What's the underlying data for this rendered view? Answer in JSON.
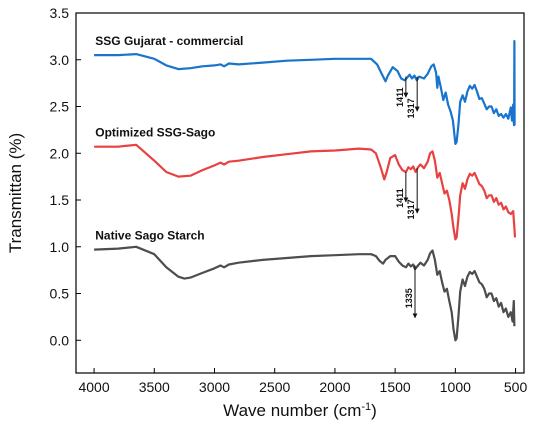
{
  "chart_data": {
    "type": "line",
    "title": "",
    "xlabel_main": "Wave number (cm",
    "xlabel_sup": "-1",
    "xlabel_close": ")",
    "xlabel": "Wave number (cm-1)",
    "ylabel": "Transmittan (%)",
    "xlim": [
      4150,
      430
    ],
    "ylim": [
      -0.35,
      3.5
    ],
    "x_reversed": true,
    "grid": false,
    "x_ticks": [
      4000,
      3500,
      3000,
      2500,
      2000,
      1500,
      1000,
      500
    ],
    "y_ticks": [
      0.0,
      0.5,
      1.0,
      1.5,
      2.0,
      2.5,
      3.0,
      3.5
    ],
    "y_tick_labels": [
      "0.0",
      "0.5",
      "1.0",
      "1.5",
      "2.0",
      "2.5",
      "3.0",
      "3.5"
    ],
    "colors": {
      "series_1": "#1874cd",
      "series_2": "#e8413f",
      "series_3": "#4d4d4d"
    },
    "series": [
      {
        "name": "SSG Gujarat - commercial",
        "color": "#1874cd",
        "points": [
          [
            4000,
            3.05
          ],
          [
            3800,
            3.05
          ],
          [
            3650,
            3.06
          ],
          [
            3500,
            3.01
          ],
          [
            3400,
            2.94
          ],
          [
            3300,
            2.9
          ],
          [
            3200,
            2.91
          ],
          [
            3100,
            2.93
          ],
          [
            3000,
            2.94
          ],
          [
            2950,
            2.95
          ],
          [
            2920,
            2.93
          ],
          [
            2880,
            2.96
          ],
          [
            2800,
            2.95
          ],
          [
            2600,
            2.97
          ],
          [
            2400,
            2.99
          ],
          [
            2200,
            3.0
          ],
          [
            2000,
            3.01
          ],
          [
            1800,
            3.01
          ],
          [
            1700,
            3.01
          ],
          [
            1650,
            2.95
          ],
          [
            1600,
            2.82
          ],
          [
            1580,
            2.77
          ],
          [
            1560,
            2.83
          ],
          [
            1520,
            2.92
          ],
          [
            1480,
            2.88
          ],
          [
            1450,
            2.8
          ],
          [
            1420,
            2.78
          ],
          [
            1400,
            2.81
          ],
          [
            1380,
            2.84
          ],
          [
            1360,
            2.8
          ],
          [
            1340,
            2.83
          ],
          [
            1320,
            2.78
          ],
          [
            1300,
            2.82
          ],
          [
            1260,
            2.8
          ],
          [
            1230,
            2.85
          ],
          [
            1200,
            2.93
          ],
          [
            1180,
            2.95
          ],
          [
            1160,
            2.86
          ],
          [
            1150,
            2.7
          ],
          [
            1140,
            2.82
          ],
          [
            1120,
            2.7
          ],
          [
            1100,
            2.57
          ],
          [
            1080,
            2.65
          ],
          [
            1060,
            2.52
          ],
          [
            1040,
            2.45
          ],
          [
            1020,
            2.35
          ],
          [
            1000,
            2.1
          ],
          [
            990,
            2.12
          ],
          [
            975,
            2.3
          ],
          [
            960,
            2.55
          ],
          [
            940,
            2.62
          ],
          [
            920,
            2.55
          ],
          [
            900,
            2.66
          ],
          [
            880,
            2.72
          ],
          [
            860,
            2.69
          ],
          [
            840,
            2.73
          ],
          [
            820,
            2.66
          ],
          [
            800,
            2.58
          ],
          [
            780,
            2.59
          ],
          [
            760,
            2.53
          ],
          [
            740,
            2.47
          ],
          [
            720,
            2.5
          ],
          [
            700,
            2.5
          ],
          [
            680,
            2.43
          ],
          [
            660,
            2.47
          ],
          [
            640,
            2.4
          ],
          [
            620,
            2.42
          ],
          [
            600,
            2.38
          ],
          [
            580,
            2.42
          ],
          [
            560,
            2.37
          ],
          [
            540,
            2.49
          ],
          [
            530,
            2.35
          ],
          [
            520,
            2.52
          ],
          [
            515,
            2.33
          ],
          [
            512,
            2.3
          ],
          [
            510,
            3.2
          ],
          [
            508,
            2.3
          ]
        ]
      },
      {
        "name": "Optimized SSG-Sago",
        "color": "#e8413f",
        "points": [
          [
            4000,
            2.07
          ],
          [
            3800,
            2.07
          ],
          [
            3650,
            2.09
          ],
          [
            3500,
            1.92
          ],
          [
            3400,
            1.8
          ],
          [
            3300,
            1.75
          ],
          [
            3200,
            1.76
          ],
          [
            3100,
            1.82
          ],
          [
            3000,
            1.87
          ],
          [
            2950,
            1.9
          ],
          [
            2920,
            1.88
          ],
          [
            2880,
            1.91
          ],
          [
            2800,
            1.92
          ],
          [
            2600,
            1.96
          ],
          [
            2400,
            1.99
          ],
          [
            2200,
            2.02
          ],
          [
            2000,
            2.03
          ],
          [
            1800,
            2.05
          ],
          [
            1700,
            2.04
          ],
          [
            1660,
            2.0
          ],
          [
            1620,
            1.85
          ],
          [
            1590,
            1.72
          ],
          [
            1570,
            1.8
          ],
          [
            1540,
            1.95
          ],
          [
            1500,
            1.98
          ],
          [
            1470,
            1.88
          ],
          [
            1440,
            1.82
          ],
          [
            1410,
            1.8
          ],
          [
            1390,
            1.85
          ],
          [
            1370,
            1.83
          ],
          [
            1350,
            1.86
          ],
          [
            1330,
            1.8
          ],
          [
            1310,
            1.85
          ],
          [
            1290,
            1.88
          ],
          [
            1260,
            1.84
          ],
          [
            1230,
            1.91
          ],
          [
            1210,
            2.0
          ],
          [
            1190,
            2.02
          ],
          [
            1170,
            1.92
          ],
          [
            1150,
            1.74
          ],
          [
            1130,
            1.79
          ],
          [
            1110,
            1.68
          ],
          [
            1090,
            1.57
          ],
          [
            1070,
            1.6
          ],
          [
            1050,
            1.5
          ],
          [
            1030,
            1.35
          ],
          [
            1015,
            1.2
          ],
          [
            1000,
            1.08
          ],
          [
            990,
            1.1
          ],
          [
            975,
            1.3
          ],
          [
            960,
            1.55
          ],
          [
            940,
            1.68
          ],
          [
            920,
            1.62
          ],
          [
            900,
            1.72
          ],
          [
            880,
            1.78
          ],
          [
            860,
            1.76
          ],
          [
            840,
            1.79
          ],
          [
            820,
            1.73
          ],
          [
            800,
            1.67
          ],
          [
            780,
            1.65
          ],
          [
            760,
            1.6
          ],
          [
            740,
            1.52
          ],
          [
            720,
            1.55
          ],
          [
            700,
            1.55
          ],
          [
            680,
            1.48
          ],
          [
            660,
            1.52
          ],
          [
            640,
            1.45
          ],
          [
            620,
            1.47
          ],
          [
            600,
            1.4
          ],
          [
            580,
            1.43
          ],
          [
            560,
            1.37
          ],
          [
            540,
            1.35
          ],
          [
            520,
            1.38
          ],
          [
            510,
            1.2
          ],
          [
            505,
            1.1
          ]
        ]
      },
      {
        "name": "Native Sago Starch",
        "color": "#4d4d4d",
        "points": [
          [
            4000,
            0.97
          ],
          [
            3800,
            0.98
          ],
          [
            3650,
            1.0
          ],
          [
            3500,
            0.92
          ],
          [
            3400,
            0.78
          ],
          [
            3300,
            0.68
          ],
          [
            3250,
            0.66
          ],
          [
            3200,
            0.67
          ],
          [
            3100,
            0.72
          ],
          [
            3000,
            0.77
          ],
          [
            2950,
            0.8
          ],
          [
            2920,
            0.78
          ],
          [
            2880,
            0.81
          ],
          [
            2800,
            0.83
          ],
          [
            2600,
            0.86
          ],
          [
            2400,
            0.88
          ],
          [
            2200,
            0.9
          ],
          [
            2000,
            0.91
          ],
          [
            1800,
            0.92
          ],
          [
            1700,
            0.92
          ],
          [
            1660,
            0.9
          ],
          [
            1630,
            0.85
          ],
          [
            1600,
            0.82
          ],
          [
            1580,
            0.86
          ],
          [
            1540,
            0.9
          ],
          [
            1500,
            0.9
          ],
          [
            1470,
            0.84
          ],
          [
            1440,
            0.8
          ],
          [
            1410,
            0.78
          ],
          [
            1390,
            0.82
          ],
          [
            1370,
            0.79
          ],
          [
            1350,
            0.81
          ],
          [
            1335,
            0.76
          ],
          [
            1310,
            0.8
          ],
          [
            1290,
            0.83
          ],
          [
            1260,
            0.8
          ],
          [
            1230,
            0.86
          ],
          [
            1210,
            0.93
          ],
          [
            1190,
            0.96
          ],
          [
            1170,
            0.86
          ],
          [
            1150,
            0.7
          ],
          [
            1130,
            0.74
          ],
          [
            1110,
            0.62
          ],
          [
            1090,
            0.52
          ],
          [
            1070,
            0.55
          ],
          [
            1050,
            0.42
          ],
          [
            1030,
            0.3
          ],
          [
            1015,
            0.12
          ],
          [
            1000,
            0.0
          ],
          [
            990,
            0.02
          ],
          [
            975,
            0.25
          ],
          [
            960,
            0.52
          ],
          [
            940,
            0.65
          ],
          [
            920,
            0.58
          ],
          [
            900,
            0.68
          ],
          [
            880,
            0.73
          ],
          [
            860,
            0.71
          ],
          [
            840,
            0.74
          ],
          [
            820,
            0.68
          ],
          [
            800,
            0.62
          ],
          [
            780,
            0.6
          ],
          [
            760,
            0.55
          ],
          [
            740,
            0.46
          ],
          [
            720,
            0.5
          ],
          [
            700,
            0.5
          ],
          [
            680,
            0.42
          ],
          [
            660,
            0.45
          ],
          [
            640,
            0.36
          ],
          [
            620,
            0.4
          ],
          [
            600,
            0.3
          ],
          [
            580,
            0.34
          ],
          [
            560,
            0.25
          ],
          [
            540,
            0.3
          ],
          [
            525,
            0.2
          ],
          [
            515,
            0.42
          ],
          [
            510,
            0.15
          ]
        ]
      }
    ],
    "annotations": [
      {
        "label": "1411",
        "x": 1411,
        "y_start": 2.82,
        "y_end": 2.6,
        "text_y": 2.6
      },
      {
        "label": "1317",
        "x": 1317,
        "y_start": 2.82,
        "y_end": 2.45,
        "text_y": 2.48
      },
      {
        "label": "1411",
        "x": 1411,
        "y_start": 1.8,
        "y_end": 1.48,
        "text_y": 1.52
      },
      {
        "label": "1317",
        "x": 1317,
        "y_start": 1.84,
        "y_end": 1.36,
        "text_y": 1.4
      },
      {
        "label": "1335",
        "x": 1335,
        "y_start": 0.8,
        "y_end": 0.24,
        "text_y": 0.45
      }
    ],
    "series_labels": [
      {
        "text": "SSG Gujarat - commercial",
        "x": 3990,
        "y": 3.16
      },
      {
        "text": "Optimized SSG-Sago",
        "x": 3990,
        "y": 2.18
      },
      {
        "text": "Native Sago Starch",
        "x": 3990,
        "y": 1.08
      }
    ]
  }
}
